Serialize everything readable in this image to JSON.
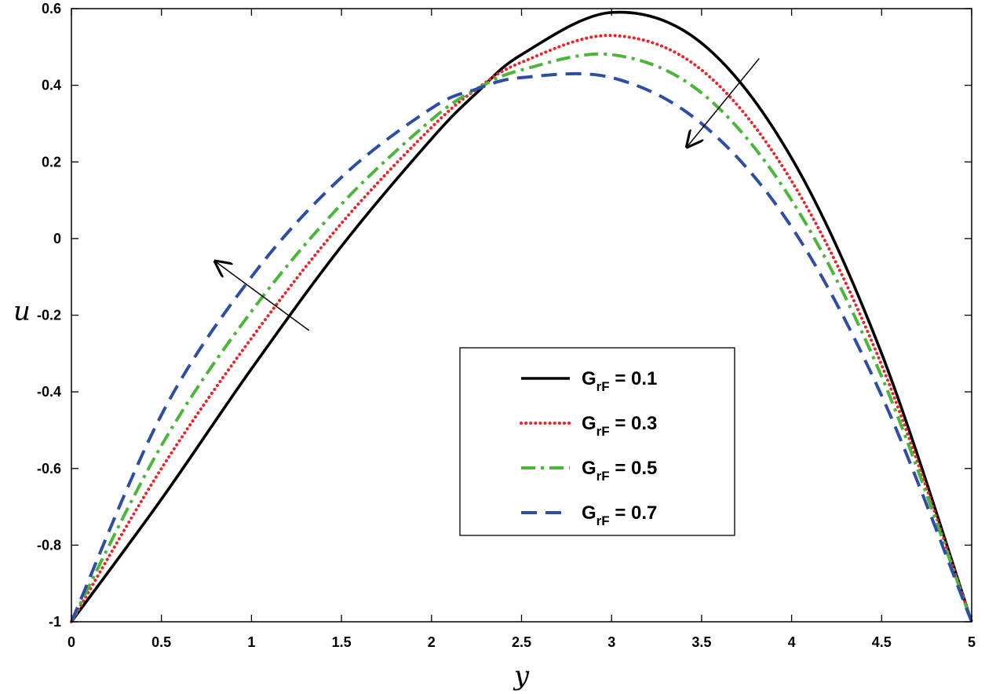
{
  "chart_data": {
    "type": "line",
    "xlabel": "y",
    "ylabel": "u",
    "xlim": [
      0,
      5
    ],
    "ylim": [
      -1,
      0.6
    ],
    "xticks": [
      "0",
      "0.5",
      "1",
      "1.5",
      "2",
      "2.5",
      "3",
      "3.5",
      "4",
      "4.5",
      "5"
    ],
    "yticks": [
      "-1",
      "-0.8",
      "-0.6",
      "-0.4",
      "-0.2",
      "0",
      "0.2",
      "0.4",
      "0.6"
    ],
    "grid": false,
    "legend_position": "center-right",
    "series": [
      {
        "name": "G",
        "sub": "rF",
        "value_text": " = 0.1",
        "color": "#000000",
        "style": "solid",
        "x": [
          0,
          0.5,
          1,
          1.5,
          2,
          2.25,
          2.5,
          3,
          3.5,
          4,
          4.5,
          5
        ],
        "y": [
          -1,
          -0.68,
          -0.34,
          -0.02,
          0.26,
          0.38,
          0.48,
          0.59,
          0.51,
          0.21,
          -0.3,
          -1
        ]
      },
      {
        "name": "G",
        "sub": "rF",
        "value_text": " = 0.3",
        "color": "#e8252a",
        "style": "dotted",
        "x": [
          0,
          0.5,
          1,
          1.5,
          2,
          2.25,
          2.5,
          3,
          3.5,
          4,
          4.5,
          5
        ],
        "y": [
          -1,
          -0.6,
          -0.26,
          0.04,
          0.29,
          0.39,
          0.46,
          0.53,
          0.44,
          0.15,
          -0.33,
          -1
        ]
      },
      {
        "name": "G",
        "sub": "rF",
        "value_text": " = 0.5",
        "color": "#4cb63b",
        "style": "dashdot",
        "x": [
          0,
          0.5,
          1,
          1.5,
          2,
          2.25,
          2.5,
          3,
          3.5,
          4,
          4.5,
          5
        ],
        "y": [
          -1,
          -0.54,
          -0.19,
          0.09,
          0.31,
          0.39,
          0.44,
          0.48,
          0.38,
          0.1,
          -0.36,
          -1
        ]
      },
      {
        "name": "G",
        "sub": "rF",
        "value_text": " = 0.7",
        "color": "#2e4ea3",
        "style": "dashed",
        "x": [
          0,
          0.5,
          1,
          1.5,
          2,
          2.25,
          2.5,
          3,
          3.5,
          4,
          4.5,
          5
        ],
        "y": [
          -1,
          -0.46,
          -0.1,
          0.16,
          0.34,
          0.39,
          0.42,
          0.42,
          0.3,
          0.03,
          -0.41,
          -1
        ]
      }
    ],
    "annotations": [
      {
        "type": "arrow",
        "from": [
          1.32,
          -0.24
        ],
        "to": [
          0.8,
          -0.06
        ]
      },
      {
        "type": "arrow",
        "from": [
          3.82,
          0.47
        ],
        "to": [
          3.42,
          0.24
        ]
      }
    ]
  }
}
